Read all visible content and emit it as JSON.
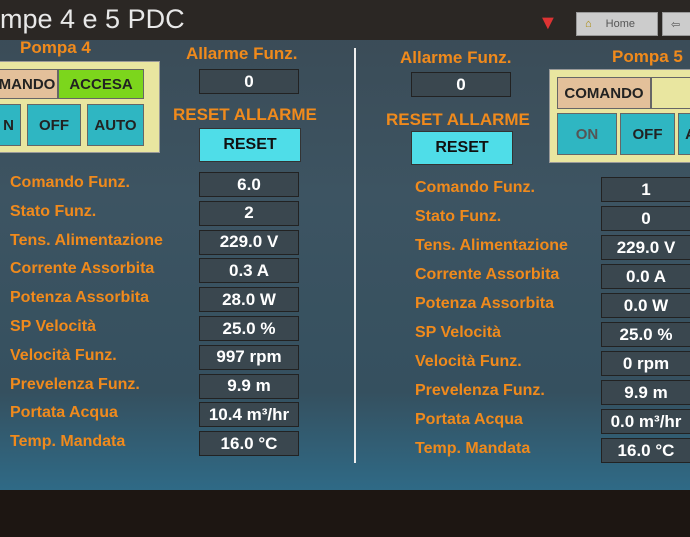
{
  "title": "mpe 4 e 5 PDC",
  "nav": {
    "home": "Home",
    "back_icon": "arrow-left-icon",
    "home_icon": "home-icon"
  },
  "colors": {
    "label": "#f08a1c",
    "accent_teal": "#2fb6c2",
    "accesa_green": "#7cd61c"
  },
  "pump4": {
    "name": "Pompa 4",
    "comando": "MANDO",
    "status": "ACCESA",
    "on": "N",
    "off": "OFF",
    "auto": "AUTO",
    "alarm_label": "Allarme Funz.",
    "alarm_value": "0",
    "reset_label": "RESET ALLARME",
    "reset_button": "RESET",
    "rows": [
      {
        "label": "Comando Funz.",
        "value": "6.0"
      },
      {
        "label": "Stato Funz.",
        "value": "2"
      },
      {
        "label": "Tens. Alimentazione",
        "value": "229.0 V"
      },
      {
        "label": "Corrente Assorbita",
        "value": "0.3 A"
      },
      {
        "label": "Potenza Assorbita",
        "value": "28.0 W"
      },
      {
        "label": "SP Velocità",
        "value": "25.0 %"
      },
      {
        "label": "Velocità Funz.",
        "value": "997 rpm"
      },
      {
        "label": "Prevelenza Funz.",
        "value": "9.9 m"
      },
      {
        "label": "Portata Acqua",
        "value": "10.4 m³/hr"
      },
      {
        "label": "Temp. Mandata",
        "value": "16.0 °C"
      }
    ]
  },
  "pump5": {
    "name": "Pompa 5",
    "comando": "COMANDO",
    "on": "ON",
    "off": "OFF",
    "auto": "A",
    "alarm_label": "Allarme Funz.",
    "alarm_value": "0",
    "reset_label": "RESET ALLARME",
    "reset_button": "RESET",
    "rows": [
      {
        "label": "Comando Funz.",
        "value": "1"
      },
      {
        "label": "Stato Funz.",
        "value": "0"
      },
      {
        "label": "Tens. Alimentazione",
        "value": "229.0 V"
      },
      {
        "label": "Corrente Assorbita",
        "value": "0.0 A"
      },
      {
        "label": "Potenza Assorbita",
        "value": "0.0 W"
      },
      {
        "label": "SP Velocità",
        "value": "25.0 %"
      },
      {
        "label": "Velocità Funz.",
        "value": "0 rpm"
      },
      {
        "label": "Prevelenza Funz.",
        "value": "9.9 m"
      },
      {
        "label": "Portata Acqua",
        "value": "0.0 m³/hr"
      },
      {
        "label": "Temp. Mandata",
        "value": "16.0 °C"
      }
    ]
  }
}
